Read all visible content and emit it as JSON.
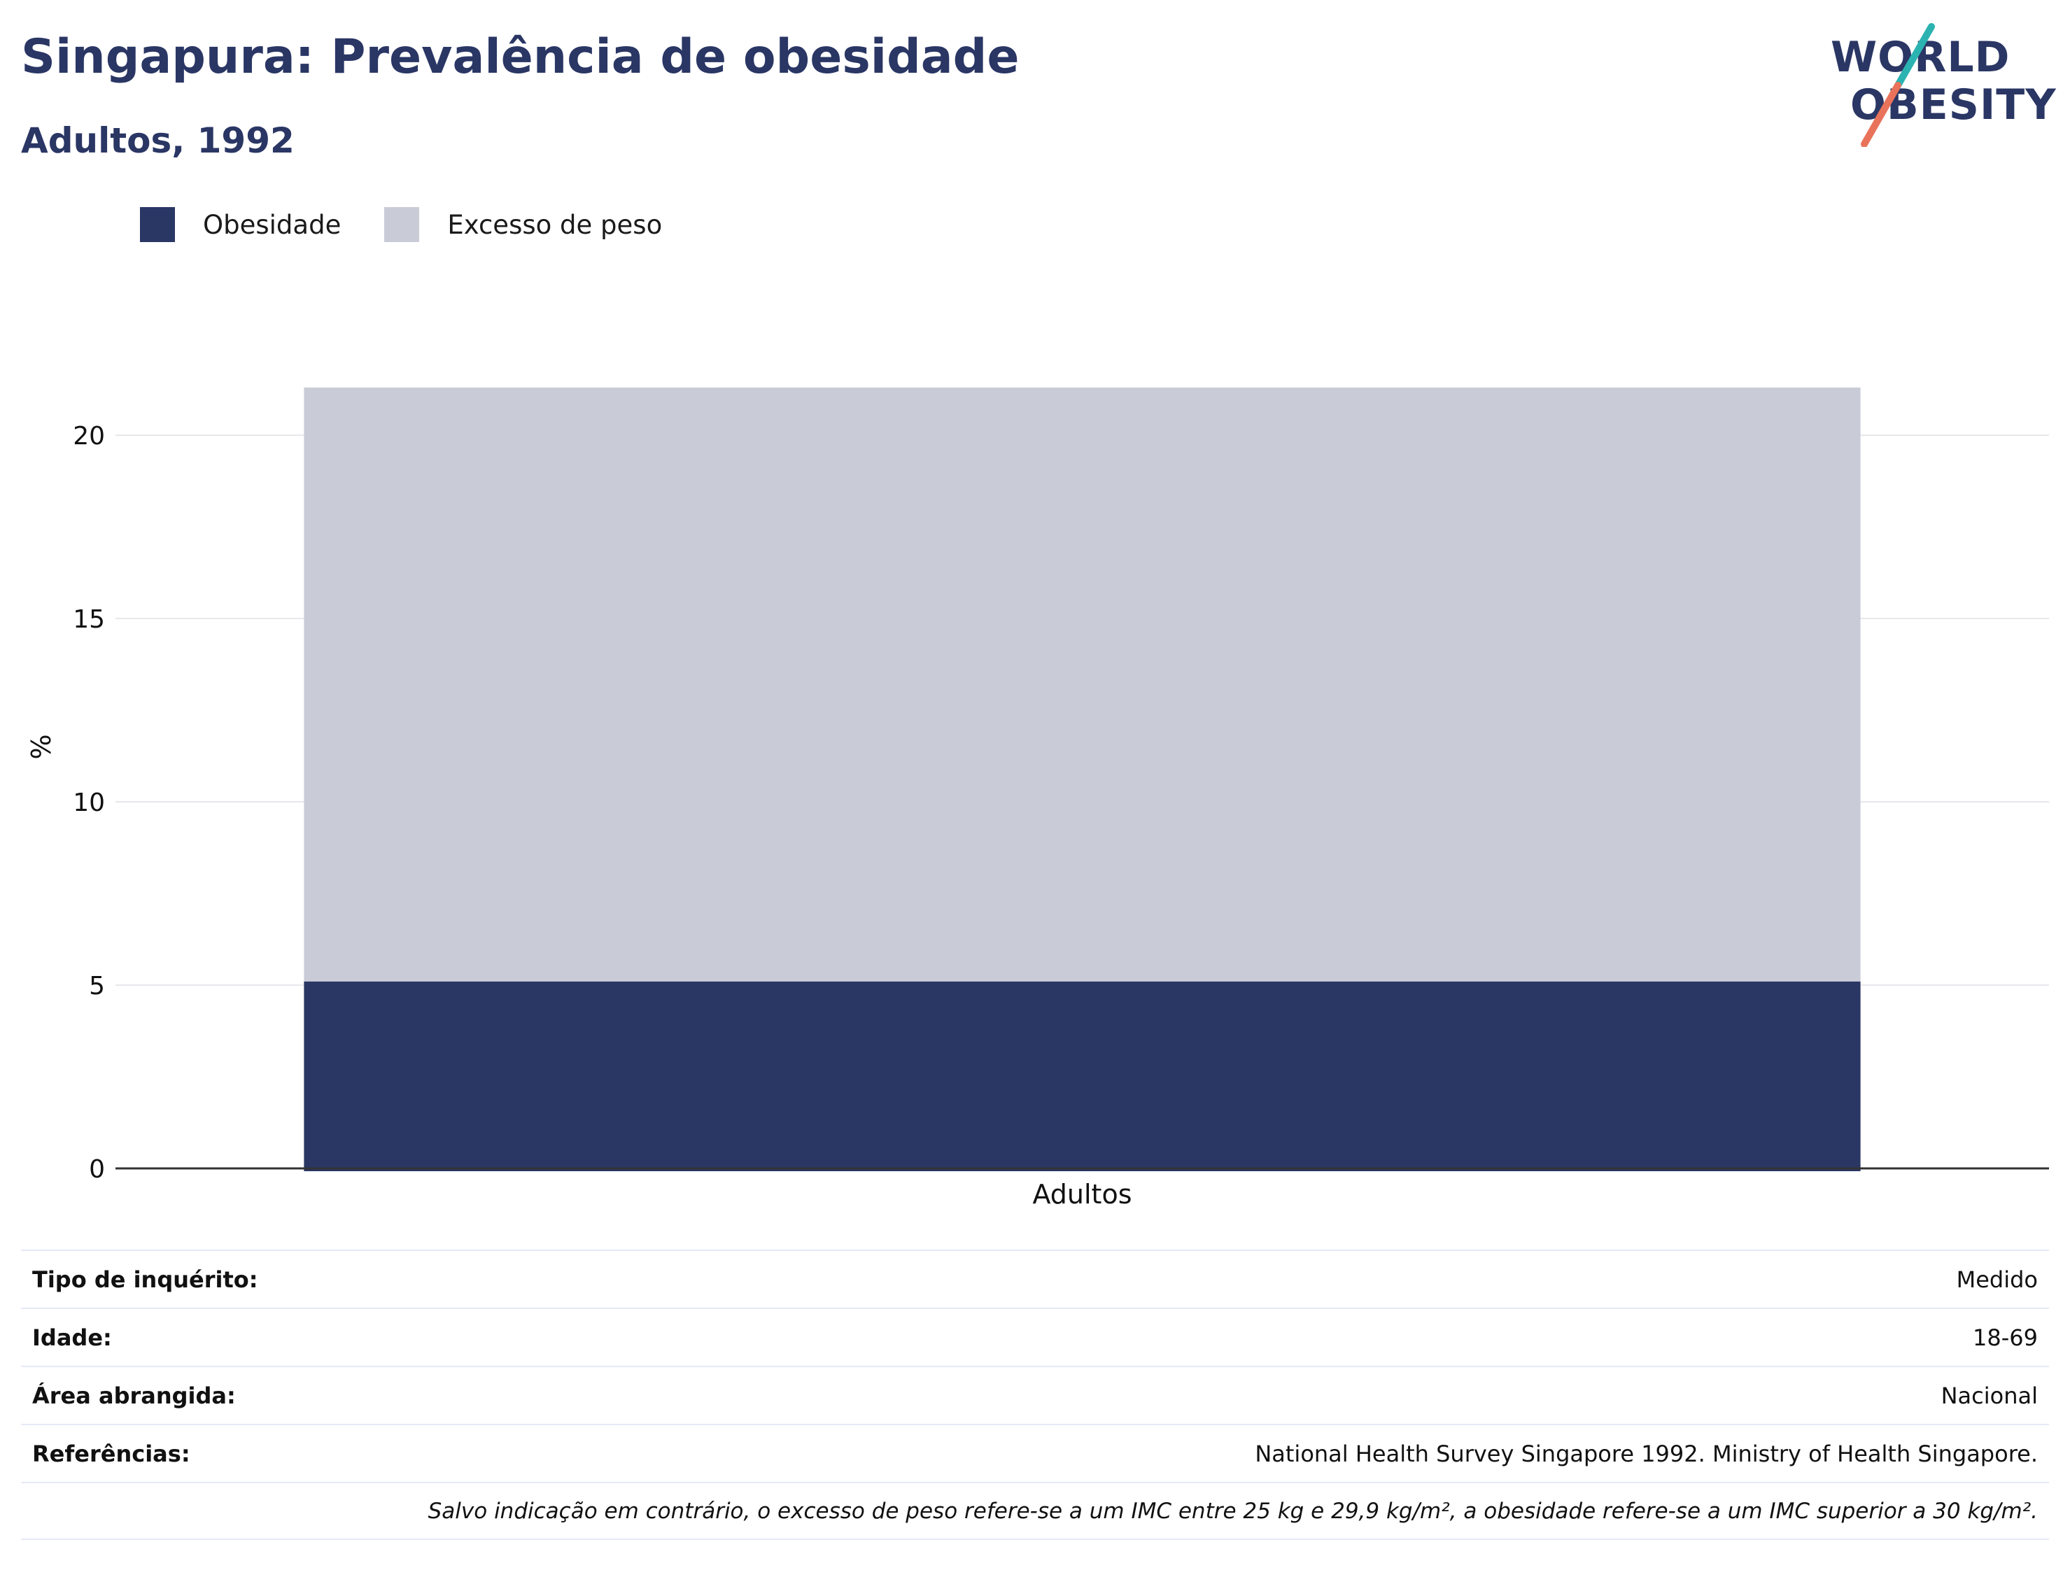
{
  "header": {
    "title": "Singapura: Prevalência de obesidade",
    "subtitle": "Adultos, 1992"
  },
  "logo": {
    "line1": "WORLD",
    "line2": "OBESITY",
    "colors": {
      "text": "#2a3664",
      "slash_teal": "#2bb3b1",
      "slash_coral": "#e8735a"
    }
  },
  "legend": [
    {
      "label": "Obesidade",
      "color": "#2a3664"
    },
    {
      "label": "Excesso de peso",
      "color": "#c9ccd7"
    }
  ],
  "chart_data": {
    "type": "bar",
    "stacked": true,
    "categories": [
      "Adultos"
    ],
    "series": [
      {
        "name": "Obesidade",
        "values": [
          5.1
        ],
        "color": "#2a3664"
      },
      {
        "name": "Excesso de peso",
        "values": [
          16.2
        ],
        "color": "#c9ccd7"
      }
    ],
    "xlabel": "",
    "ylabel": "%",
    "ylim": [
      0,
      23
    ],
    "yticks": [
      0,
      5,
      10,
      15,
      20
    ],
    "grid": true,
    "legend_position": "top-left"
  },
  "info": {
    "rows": [
      {
        "label": "Tipo de inquérito:",
        "value": "Medido"
      },
      {
        "label": "Idade:",
        "value": "18-69"
      },
      {
        "label": "Área abrangida:",
        "value": "Nacional"
      },
      {
        "label": "Referências:",
        "value": "National Health Survey Singapore 1992. Ministry of Health Singapore."
      }
    ],
    "note": "Salvo indicação em contrário, o excesso de peso refere-se a um IMC entre 25 kg e 29,9 kg/m², a obesidade refere-se a um IMC superior a 30 kg/m²."
  }
}
